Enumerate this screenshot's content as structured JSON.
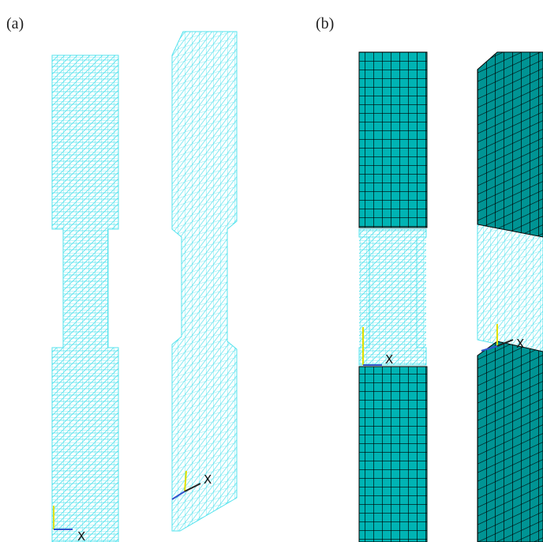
{
  "panels": [
    {
      "label": "(a)",
      "axes": [
        {
          "x": "X"
        },
        {
          "x": "X"
        }
      ]
    },
    {
      "label": "(b)",
      "axes": [
        {
          "x": "X"
        },
        {
          "x": "X"
        }
      ]
    }
  ]
}
